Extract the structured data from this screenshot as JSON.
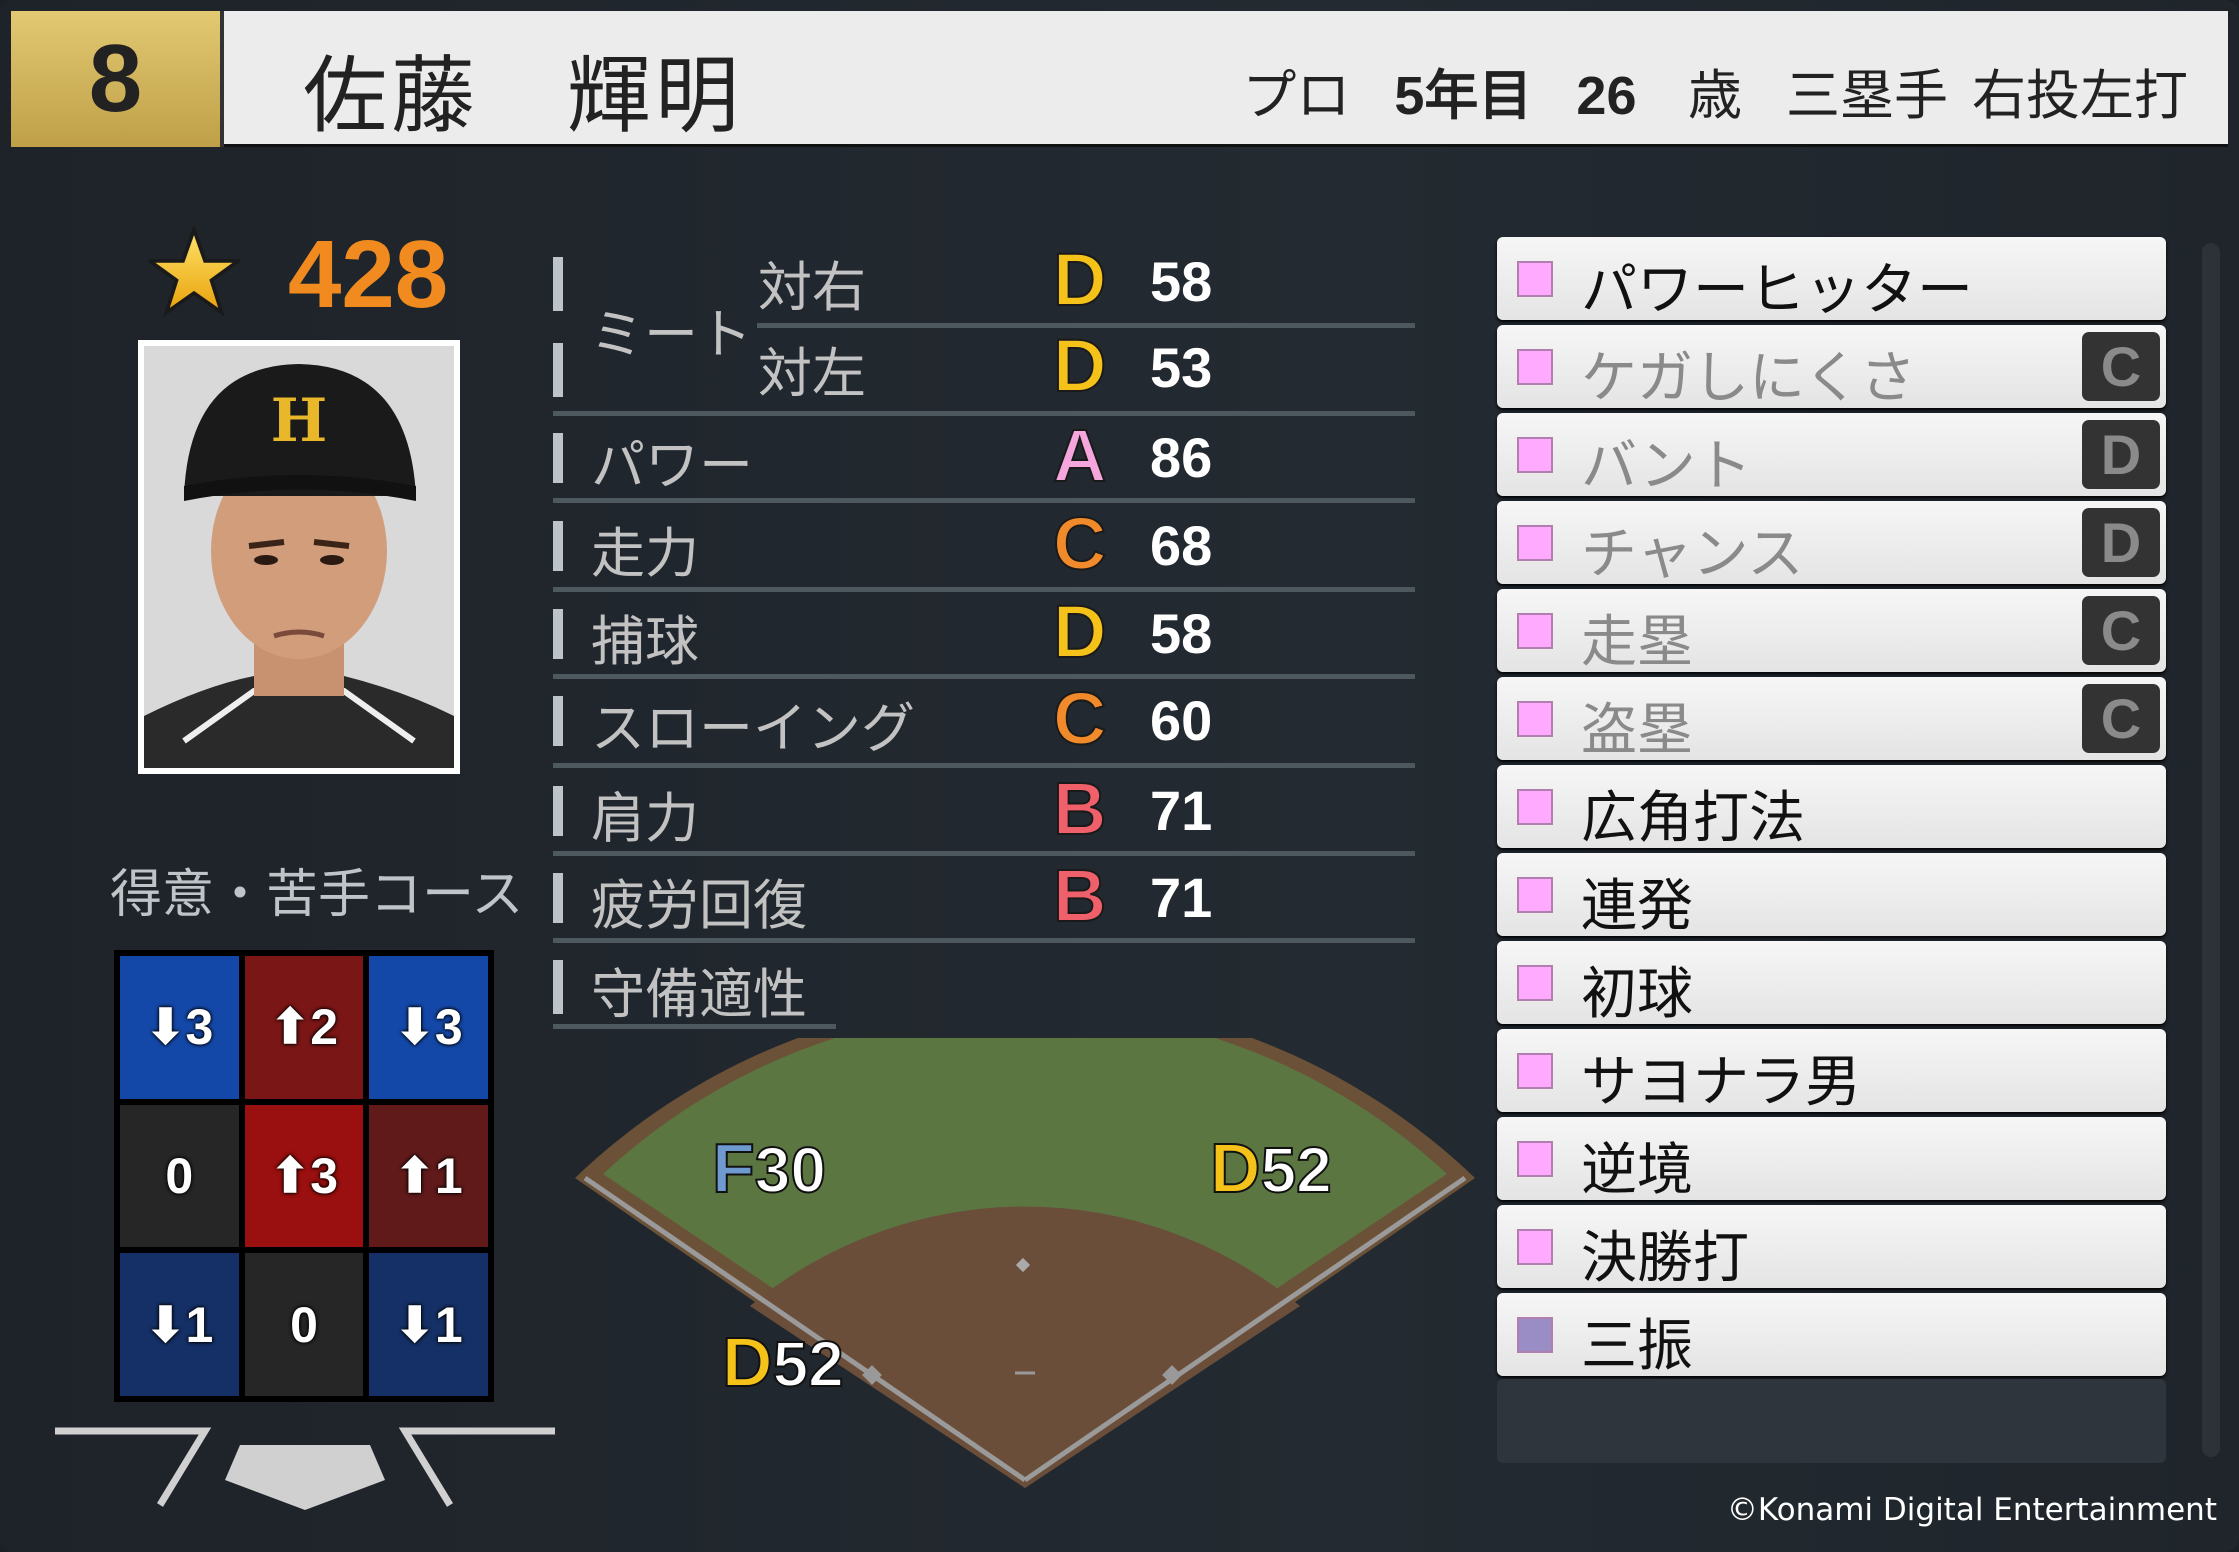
{
  "header": {
    "number": "8",
    "name": "佐藤　輝明",
    "career": "プロ",
    "years": "5年目",
    "age": "26",
    "age_unit": "歳",
    "position": "三塁手",
    "handedness": "右投左打"
  },
  "overall": {
    "icon": "star-icon",
    "value": "428",
    "color": "#f18a1f"
  },
  "course": {
    "label": "得意・苦手コース",
    "cells": [
      {
        "text": "3",
        "dir": "down",
        "color": "#1448a8"
      },
      {
        "text": "2",
        "dir": "up",
        "color": "#7a1616"
      },
      {
        "text": "3",
        "dir": "down",
        "color": "#1448a8"
      },
      {
        "text": "0",
        "dir": "none",
        "color": "#262626"
      },
      {
        "text": "3",
        "dir": "up",
        "color": "#9a0f0f"
      },
      {
        "text": "1",
        "dir": "up",
        "color": "#611a1a"
      },
      {
        "text": "1",
        "dir": "down",
        "color": "#153066"
      },
      {
        "text": "0",
        "dir": "none",
        "color": "#262626"
      },
      {
        "text": "1",
        "dir": "down",
        "color": "#153066"
      }
    ]
  },
  "stats": {
    "meet_label": "ミート",
    "rows": [
      {
        "label": "対右",
        "grade": "D",
        "value": "58"
      },
      {
        "label": "対左",
        "grade": "D",
        "value": "53"
      },
      {
        "label": "パワー",
        "grade": "A",
        "value": "86"
      },
      {
        "label": "走力",
        "grade": "C",
        "value": "68"
      },
      {
        "label": "捕球",
        "grade": "D",
        "value": "58"
      },
      {
        "label": "スローイング",
        "grade": "C",
        "value": "60"
      },
      {
        "label": "肩力",
        "grade": "B",
        "value": "71"
      },
      {
        "label": "疲労回復",
        "grade": "B",
        "value": "71"
      }
    ],
    "defense_label": "守備適性"
  },
  "grade_colors": {
    "A": "#f5a6dc",
    "B": "#f0606a",
    "C": "#f08a2a",
    "D": "#f5c21a",
    "F": "#6f9ad0"
  },
  "field": [
    {
      "grade": "F",
      "value": "30"
    },
    {
      "grade": "D",
      "value": "52"
    },
    {
      "grade": "D",
      "value": "52"
    }
  ],
  "abilities": [
    {
      "name": "パワーヒッター",
      "rank": "",
      "active": true,
      "color": "#ffaaff"
    },
    {
      "name": "ケガしにくさ",
      "rank": "C",
      "active": false,
      "color": "#ffaaff"
    },
    {
      "name": "バント",
      "rank": "D",
      "active": false,
      "color": "#ffaaff"
    },
    {
      "name": "チャンス",
      "rank": "D",
      "active": false,
      "color": "#ffaaff"
    },
    {
      "name": "走塁",
      "rank": "C",
      "active": false,
      "color": "#ffaaff"
    },
    {
      "name": "盗塁",
      "rank": "C",
      "active": false,
      "color": "#ffaaff"
    },
    {
      "name": "広角打法",
      "rank": "",
      "active": true,
      "color": "#ffaaff"
    },
    {
      "name": "連発",
      "rank": "",
      "active": true,
      "color": "#ffaaff"
    },
    {
      "name": "初球",
      "rank": "",
      "active": true,
      "color": "#ffaaff"
    },
    {
      "name": "サヨナラ男",
      "rank": "",
      "active": true,
      "color": "#ffaaff"
    },
    {
      "name": "逆境",
      "rank": "",
      "active": true,
      "color": "#ffaaff"
    },
    {
      "name": "決勝打",
      "rank": "",
      "active": true,
      "color": "#ffaaff"
    },
    {
      "name": "三振",
      "rank": "",
      "active": true,
      "color": "#9a8cc4"
    }
  ],
  "copyright": "©Konami Digital Entertainment"
}
